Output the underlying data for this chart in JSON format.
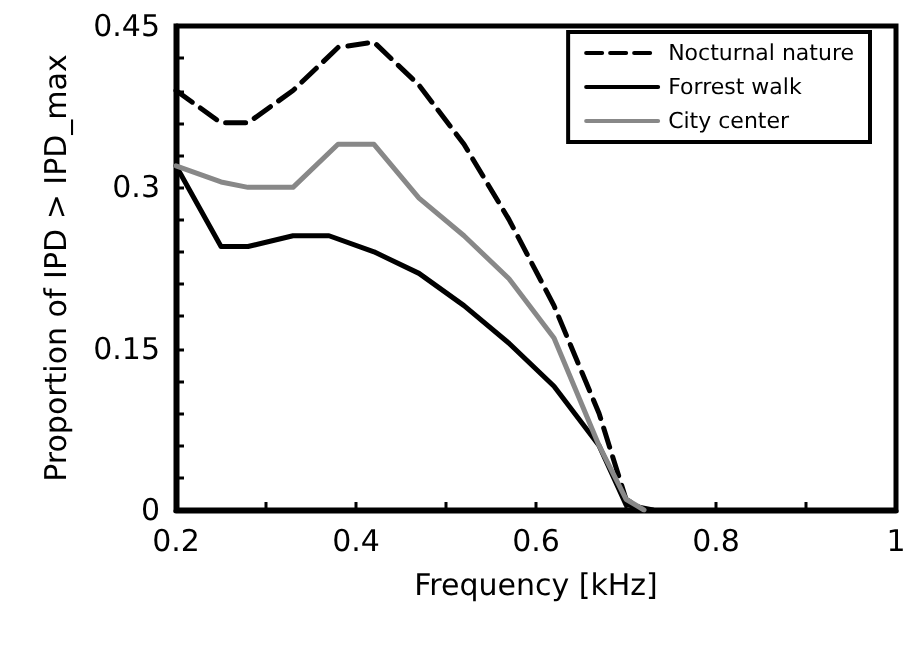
{
  "chart_data": {
    "type": "line",
    "xlabel": "Frequency [kHz]",
    "ylabel": "Proportion of IPD > IPD_max",
    "xlim": [
      0.2,
      1
    ],
    "ylim": [
      0,
      0.45
    ],
    "xticks": [
      0.2,
      {
        "value": 0.3,
        "label": null
      },
      0.4,
      {
        "value": 0.5,
        "label": null
      },
      0.6,
      {
        "value": 0.7,
        "label": null
      },
      0.8,
      {
        "value": 0.9,
        "label": null
      },
      1
    ],
    "yticks": [
      0,
      {
        "value": 0.03,
        "label": null
      },
      {
        "value": 0.06,
        "label": null
      },
      {
        "value": 0.09,
        "label": null
      },
      {
        "value": 0.12,
        "label": null
      },
      0.15,
      {
        "value": 0.18,
        "label": null
      },
      {
        "value": 0.21,
        "label": null
      },
      {
        "value": 0.24,
        "label": null
      },
      {
        "value": 0.27,
        "label": null
      },
      0.3,
      {
        "value": 0.33,
        "label": null
      },
      {
        "value": 0.36,
        "label": null
      },
      {
        "value": 0.39,
        "label": null
      },
      {
        "value": 0.42,
        "label": null
      },
      0.45
    ],
    "grid": false,
    "legend": "top right",
    "marker": "none",
    "series": [
      {
        "name": "Nocturnal nature",
        "color": "#000000",
        "line_style": "dashed",
        "x": [
          0.2,
          0.25,
          0.28,
          0.33,
          0.38,
          0.42,
          0.47,
          0.52,
          0.57,
          0.62,
          0.67,
          0.7,
          0.72
        ],
        "values": [
          0.39,
          0.36,
          0.36,
          0.39,
          0.43,
          0.435,
          0.395,
          0.34,
          0.27,
          0.19,
          0.09,
          0.01,
          0
        ]
      },
      {
        "name": "Forrest walk",
        "color": "#000000",
        "line_style": "solid",
        "x": [
          0.2,
          0.25,
          0.28,
          0.33,
          0.37,
          0.42,
          0.47,
          0.52,
          0.57,
          0.62,
          0.67,
          0.7,
          0.73
        ],
        "values": [
          0.32,
          0.245,
          0.245,
          0.255,
          0.255,
          0.24,
          0.22,
          0.19,
          0.155,
          0.115,
          0.06,
          0.005,
          0
        ]
      },
      {
        "name": "City center",
        "color": "#888888",
        "line_style": "solid",
        "x": [
          0.2,
          0.25,
          0.28,
          0.33,
          0.38,
          0.42,
          0.47,
          0.52,
          0.57,
          0.62,
          0.67,
          0.7,
          0.72
        ],
        "values": [
          0.32,
          0.305,
          0.3,
          0.3,
          0.34,
          0.34,
          0.29,
          0.255,
          0.215,
          0.16,
          0.06,
          0.01,
          0
        ]
      }
    ]
  }
}
